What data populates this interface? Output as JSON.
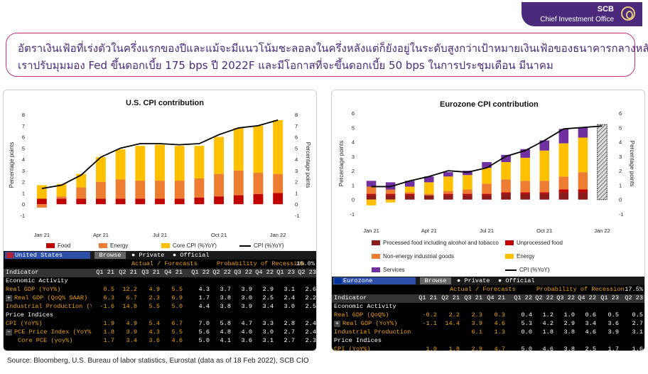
{
  "brand": {
    "name": "SCB",
    "sub": "Chief Investment Office"
  },
  "headline": {
    "line1": "อัตราเงินเฟ้อที่เร่งตัวในครึ่งแรกของปีและแม้จะมีแนวโน้มชะลอลงในครึ่งหลังแต่ก็ยังอยู่ในระดับสูงกว่าเป้าหมายเงินเฟ้อของธนาคารกลางหลัก",
    "line2": "เราปรับมุมมอง Fed ขึ้นดอกเบี้ย 175 bps ปี 2022F และมีโอกาสที่จะขึ้นดอกเบี้ย 50 bps ในการประชุมเดือน มีนาคม"
  },
  "chart_data": [
    {
      "type": "bar",
      "title": "U.S. CPI contribution",
      "ylabel": "Percentage points",
      "ylabel_right": "Percentage points",
      "ylim": [
        -1,
        8
      ],
      "yticks": [
        -1,
        0,
        1,
        2,
        3,
        4,
        5,
        6,
        7,
        8
      ],
      "stacked": true,
      "categories": [
        "Jan 21",
        "Feb 21",
        "Mar 21",
        "Apr 21",
        "May 21",
        "Jun 21",
        "Jul 21",
        "Aug 21",
        "Sep 21",
        "Oct 21",
        "Nov 21",
        "Dec 21",
        "Jan 22"
      ],
      "xtick_labels": [
        {
          "i": 0,
          "label": "Jan 21"
        },
        {
          "i": 3,
          "label": "Apr 21"
        },
        {
          "i": 6,
          "label": "Jul 21"
        },
        {
          "i": 9,
          "label": "Oct 21"
        },
        {
          "i": 12,
          "label": "Jan 22"
        }
      ],
      "series": [
        {
          "name": "Food",
          "color": "#c00000",
          "values": [
            0.5,
            0.5,
            0.5,
            0.5,
            0.5,
            0.5,
            0.5,
            0.5,
            0.6,
            0.7,
            0.8,
            0.9,
            1.0
          ]
        },
        {
          "name": "Energy",
          "color": "#ed7d31",
          "values": [
            -0.3,
            0.2,
            1.0,
            1.5,
            1.7,
            1.6,
            1.6,
            1.6,
            1.7,
            2.0,
            2.2,
            1.9,
            1.7
          ]
        },
        {
          "name": "Core CPI (%YoY)",
          "color": "#ffc000",
          "values": [
            1.2,
            1.1,
            1.2,
            2.2,
            2.7,
            3.1,
            3.2,
            3.1,
            2.9,
            3.3,
            3.8,
            4.2,
            4.8
          ]
        }
      ],
      "line": {
        "name": "CPI (%YoY)",
        "color": "#000000",
        "values": [
          1.4,
          1.7,
          2.6,
          4.2,
          5.0,
          5.4,
          5.4,
          5.3,
          5.4,
          6.2,
          6.8,
          7.0,
          7.5
        ]
      },
      "legend_position": "bottom"
    },
    {
      "type": "bar",
      "title": "Eurozone CPI contribution",
      "ylabel": "Percentage points",
      "ylabel_right": "Percentage points",
      "ylim": [
        -1,
        6
      ],
      "yticks": [
        -1,
        0,
        1,
        2,
        3,
        4,
        5,
        6
      ],
      "stacked": true,
      "categories": [
        "Jan 21",
        "Feb 21",
        "Mar 21",
        "Apr 21",
        "May 21",
        "Jun 21",
        "Jul 21",
        "Aug 21",
        "Sep 21",
        "Oct 21",
        "Nov 21",
        "Dec 21",
        "Jan 22"
      ],
      "xtick_labels": [
        {
          "i": 0,
          "label": "Jan 21"
        },
        {
          "i": 3,
          "label": "Apr 21"
        },
        {
          "i": 6,
          "label": "Jul 21"
        },
        {
          "i": 9,
          "label": "Oct 21"
        },
        {
          "i": 12,
          "label": "Jan 22"
        }
      ],
      "series": [
        {
          "name": "Processed food including alcohol and tobacco",
          "color": "#8b1a1a",
          "values": [
            0.3,
            0.3,
            0.3,
            0.3,
            0.3,
            0.3,
            0.3,
            0.4,
            0.4,
            0.4,
            0.5,
            0.5,
            0.6
          ]
        },
        {
          "name": "Unprocessed food",
          "color": "#c00000",
          "values": [
            0.1,
            0.1,
            0.1,
            0.0,
            0.1,
            0.1,
            0.1,
            0.1,
            0.1,
            0.1,
            0.2,
            0.2,
            0.2
          ]
        },
        {
          "name": "Non-energy industrial goods",
          "color": "#ed7d31",
          "values": [
            0.5,
            0.3,
            0.1,
            0.1,
            0.2,
            0.3,
            0.7,
            0.9,
            0.8,
            0.8,
            0.9,
            1.2,
            1.0
          ]
        },
        {
          "name": "Energy",
          "color": "#ffc000",
          "values": [
            -0.4,
            -0.2,
            0.4,
            0.8,
            1.0,
            1.0,
            1.1,
            1.2,
            1.6,
            2.1,
            2.3,
            2.4,
            2.4
          ]
        },
        {
          "name": "Services",
          "color": "#7030a0",
          "values": [
            0.4,
            0.5,
            0.4,
            0.4,
            0.3,
            0.3,
            0.4,
            0.5,
            0.6,
            0.7,
            1.0,
            0.7,
            1.0
          ]
        }
      ],
      "hatched_last": true,
      "line": {
        "name": "CPI (%YoY)",
        "color": "#000000",
        "values": [
          0.9,
          0.9,
          1.3,
          1.6,
          2.0,
          1.9,
          2.2,
          3.0,
          3.4,
          4.1,
          4.9,
          5.0,
          5.1
        ]
      },
      "legend_position": "bottom"
    }
  ],
  "us_table": {
    "title": "United States",
    "browse": "Browse",
    "opt1": "Private",
    "opt2": "Official",
    "actual": "Actual / Forecasts",
    "prob_label": "Probability of Recession",
    "prob_value": "15.0%",
    "header": [
      "Indicator",
      "Q1 21",
      "Q2 21",
      "Q3 21",
      "Q4 21",
      "Q1 22",
      "Q2 22",
      "Q3 22",
      "Q4 22",
      "Q1 23",
      "Q2 23"
    ],
    "rows": [
      {
        "label": "Economic Activity",
        "type": "cat",
        "values": []
      },
      {
        "label": "Real GDP (YoY%)",
        "type": "val",
        "values": [
          "0.5",
          "12.2",
          "4.9",
          "5.5",
          "4.3",
          "3.7",
          "3.9",
          "2.9",
          "3.1",
          "2.6"
        ]
      },
      {
        "label": "Real GDP (QoQ% SAAR)",
        "type": "val",
        "plus": true,
        "values": [
          "6.3",
          "6.7",
          "2.3",
          "6.9",
          "1.7",
          "3.8",
          "3.0",
          "2.5",
          "2.4",
          "2.2"
        ]
      },
      {
        "label": "Industrial Production (YoY...",
        "type": "val",
        "values": [
          "-1.6",
          "14.8",
          "5.5",
          "5.0",
          "4.4",
          "3.8",
          "3.9",
          "3.4",
          "3.0",
          "2.5"
        ]
      },
      {
        "label": "Price Indices",
        "type": "cat",
        "values": []
      },
      {
        "label": "CPI (YoY%)",
        "type": "val",
        "values": [
          "1.9",
          "4.9",
          "5.4",
          "6.7",
          "7.0",
          "5.8",
          "4.7",
          "3.3",
          "2.8",
          "2.4"
        ]
      },
      {
        "label": "PCE Price Index (YoY%)",
        "type": "val",
        "minus": true,
        "values": [
          "1.8",
          "3.9",
          "4.3",
          "5.5",
          "5.6",
          "4.8",
          "4.0",
          "3.0",
          "2.7",
          "2.4"
        ]
      },
      {
        "label": "Core PCE (yoy%)",
        "type": "val",
        "indent": true,
        "values": [
          "1.7",
          "3.4",
          "3.6",
          "4.6",
          "5.0",
          "4.1",
          "3.6",
          "3.1",
          "2.7",
          "2.3"
        ]
      }
    ]
  },
  "ez_table": {
    "title": "Eurozone",
    "browse": "Browse",
    "opt1": "Private",
    "opt2": "Official",
    "actual": "Actual / Forecasts",
    "prob_label": "Probability of Recession",
    "prob_value": "17.5%",
    "header": [
      "Indicator",
      "Q1 21",
      "Q2 21",
      "Q3 21",
      "Q4 21",
      "Q1 22",
      "Q2 22",
      "Q3 22",
      "Q4 22",
      "Q1 23",
      "Q2 23"
    ],
    "rows": [
      {
        "label": "Economic Activity",
        "type": "cat",
        "values": []
      },
      {
        "label": "Real GDP (QoQ%)",
        "type": "val",
        "values": [
          "-0.2",
          "2.2",
          "2.3",
          "0.3",
          "0.4",
          "1.2",
          "1.0",
          "0.6",
          "0.5",
          "0.5"
        ]
      },
      {
        "label": "Real GDP (YoY%)",
        "type": "val",
        "plus": true,
        "values": [
          "-1.1",
          "14.4",
          "3.9",
          "4.6",
          "5.3",
          "4.2",
          "2.9",
          "3.4",
          "3.6",
          "2.7"
        ]
      },
      {
        "label": "Industrial Production (YoY...",
        "type": "val",
        "values": [
          "",
          "",
          "6.1",
          "1.3",
          "0.0",
          "1.8",
          "3.8",
          "4.6",
          "3.9",
          "3.1"
        ]
      },
      {
        "label": "Price Indices",
        "type": "cat",
        "values": []
      },
      {
        "label": "CPI (YoY%)",
        "type": "val",
        "values": [
          "1.0",
          "1.8",
          "2.9",
          "4.7",
          "5.0",
          "4.6",
          "3.8",
          "2.5",
          "1.7",
          "1.6"
        ]
      }
    ]
  },
  "source": "Source: Bloomberg, U.S. Bureau of labor statistics, Eurostat (data as of 18 Feb 2022), SCB CIO"
}
